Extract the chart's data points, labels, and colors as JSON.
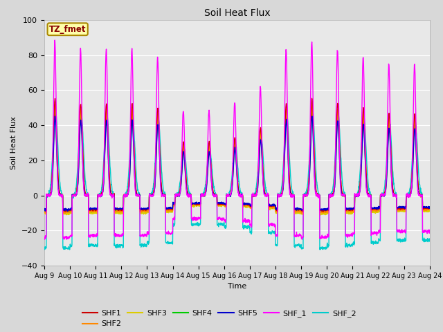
{
  "title": "Soil Heat Flux",
  "xlabel": "Time",
  "ylabel": "Soil Heat Flux",
  "ylim": [
    -40,
    100
  ],
  "n_days": 15,
  "xtick_labels": [
    "Aug 9",
    "Aug 10",
    "Aug 11",
    "Aug 12",
    "Aug 13",
    "Aug 14",
    "Aug 15",
    "Aug 16",
    "Aug 17",
    "Aug 18",
    "Aug 19",
    "Aug 20",
    "Aug 21",
    "Aug 22",
    "Aug 23",
    "Aug 24"
  ],
  "series": {
    "SHF1": {
      "color": "#cc0000",
      "lw": 1.0
    },
    "SHF2": {
      "color": "#ff8800",
      "lw": 1.0
    },
    "SHF3": {
      "color": "#ddcc00",
      "lw": 1.0
    },
    "SHF4": {
      "color": "#00cc00",
      "lw": 1.0
    },
    "SHF5": {
      "color": "#0000cc",
      "lw": 1.0
    },
    "SHF_1": {
      "color": "#ff00ff",
      "lw": 1.0
    },
    "SHF_2": {
      "color": "#00cccc",
      "lw": 1.0
    }
  },
  "background_color": "#d8d8d8",
  "plot_bg_color": "#e8e8e8",
  "grid_color": "#ffffff",
  "annotation_text": "TZ_fmet",
  "annotation_bg": "#ffffaa",
  "annotation_border": "#aa8800",
  "annotation_text_color": "#880000",
  "legend_ncol_row1": 6,
  "legend_ncol_row2": 1
}
